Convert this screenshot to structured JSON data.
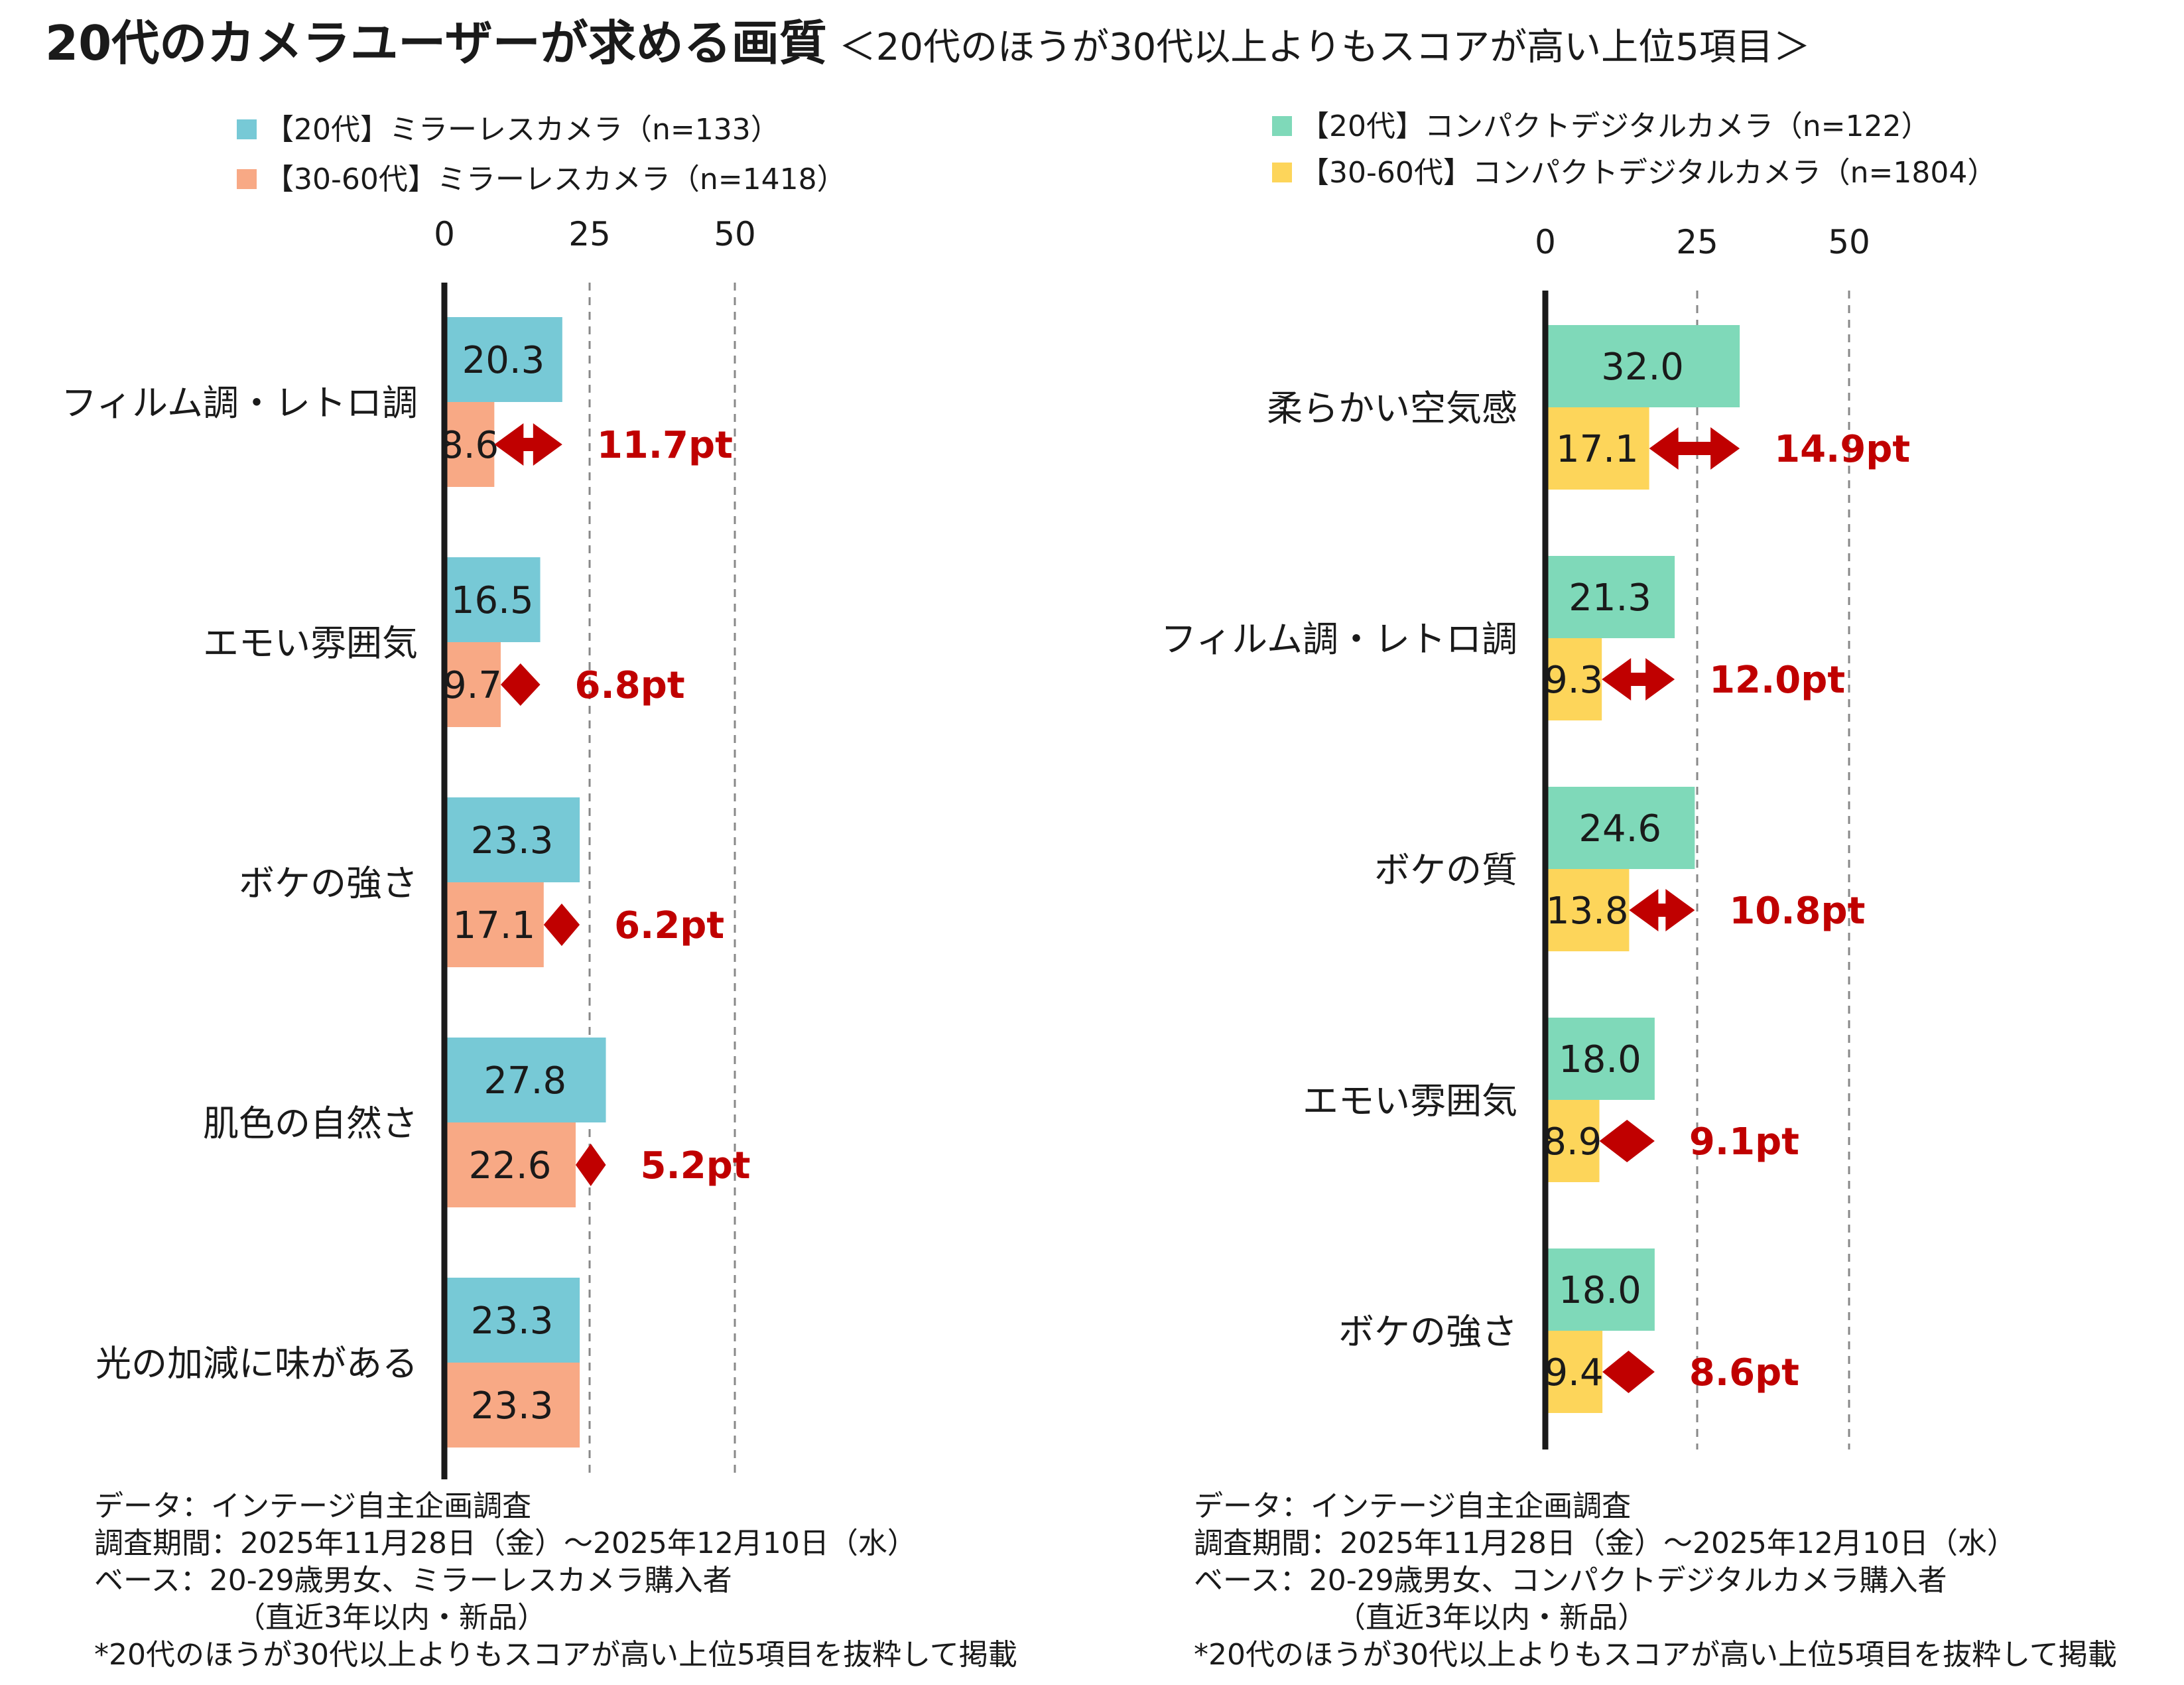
{
  "title": {
    "main": "20代のカメラユーザーが求める画質",
    "sub": "＜20代のほうが30代以上よりもスコアが高い上位5項目＞"
  },
  "colors": {
    "mirrorless_20s": "#77c9d6",
    "mirrorless_30_60s": "#f8a985",
    "compact_20s": "#7fd9b9",
    "compact_30_60s": "#fdd55a",
    "diff_arrow": "#c00000",
    "axis": "#1a1a1a",
    "grid": "#888888"
  },
  "chart_data": [
    {
      "type": "bar",
      "orientation": "horizontal",
      "categories": [
        "フィルム調・レトロ調",
        "エモい雰囲気",
        "ボケの強さ",
        "肌色の自然さ",
        "光の加減に味がある"
      ],
      "series": [
        {
          "name": "【20代】ミラーレスカメラ（n=133）",
          "values": [
            20.3,
            16.5,
            23.3,
            27.8,
            23.3
          ]
        },
        {
          "name": "【30-60代】ミラーレスカメラ（n=1418）",
          "values": [
            8.6,
            9.7,
            17.1,
            22.6,
            23.3
          ]
        }
      ],
      "value_labels": [
        [
          "20.3",
          "16.5",
          "23.3",
          "27.8",
          "23.3"
        ],
        [
          "8.6",
          "9.7",
          "17.1",
          "22.6",
          "23.3"
        ]
      ],
      "differences": [
        "11.7pt",
        "6.8pt",
        "6.2pt",
        "5.2pt",
        ""
      ],
      "ticks": [
        "0",
        "25",
        "50"
      ],
      "xlim": [
        0,
        50
      ],
      "grid": "dashed vertical at 25 and 50",
      "legend_position": "top",
      "notes": [
        "データ：インテージ自主企画調査",
        "調査期間：2025年11月28日（金）～2025年12月10日（水）",
        "ベース：20-29歳男女、ミラーレスカメラ購入者",
        "（直近3年以内・新品）",
        "*20代のほうが30代以上よりもスコアが高い上位5項目を抜粋して掲載"
      ]
    },
    {
      "type": "bar",
      "orientation": "horizontal",
      "categories": [
        "柔らかい空気感",
        "フィルム調・レトロ調",
        "ボケの質",
        "エモい雰囲気",
        "ボケの強さ"
      ],
      "series": [
        {
          "name": "【20代】コンパクトデジタルカメラ（n=122）",
          "values": [
            32.0,
            21.3,
            24.6,
            18.0,
            18.0
          ]
        },
        {
          "name": "【30-60代】コンパクトデジタルカメラ（n=1804）",
          "values": [
            17.1,
            9.3,
            13.8,
            8.9,
            9.4
          ]
        }
      ],
      "value_labels": [
        [
          "32.0",
          "21.3",
          "24.6",
          "18.0",
          "18.0"
        ],
        [
          "17.1",
          "9.3",
          "13.8",
          "8.9",
          "9.4"
        ]
      ],
      "differences": [
        "14.9pt",
        "12.0pt",
        "10.8pt",
        "9.1pt",
        "8.6pt"
      ],
      "ticks": [
        "0",
        "25",
        "50"
      ],
      "xlim": [
        0,
        50
      ],
      "grid": "dashed vertical at 25 and 50",
      "legend_position": "top",
      "notes": [
        "データ：インテージ自主企画調査",
        "調査期間：2025年11月28日（金）～2025年12月10日（水）",
        "ベース：20-29歳男女、コンパクトデジタルカメラ購入者",
        "（直近3年以内・新品）",
        "*20代のほうが30代以上よりもスコアが高い上位5項目を抜粋して掲載"
      ]
    }
  ]
}
